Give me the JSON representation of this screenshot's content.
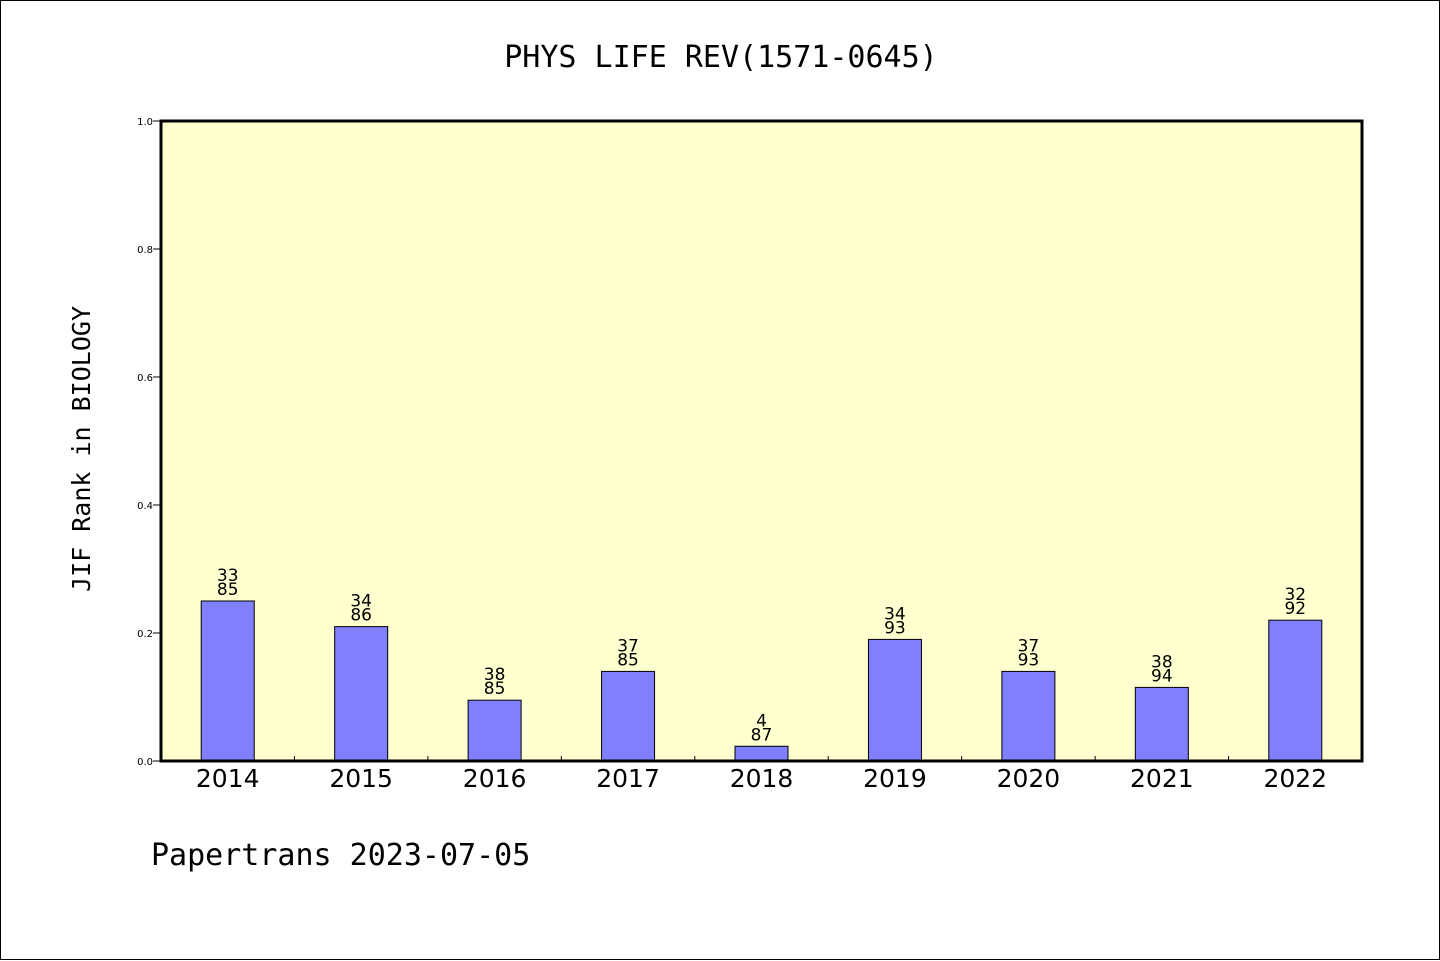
{
  "footer": {
    "text": "Papertrans 2023-07-05"
  },
  "colors": {
    "plot_background": "#ffffd0",
    "bar_fill": "#8080ff",
    "bar_stroke": "#000000"
  },
  "chart_data": {
    "type": "bar",
    "title": "PHYS LIFE REV(1571-0645)",
    "xlabel": "",
    "ylabel": "JIF Rank in BIOLOGY",
    "ylim": [
      0,
      1
    ],
    "yticks": [
      "0.0",
      "0.2",
      "0.4",
      "0.6",
      "0.8",
      "1.0"
    ],
    "grid": false,
    "categories": [
      "2014",
      "2015",
      "2016",
      "2017",
      "2018",
      "2019",
      "2020",
      "2021",
      "2022"
    ],
    "values": [
      0.25,
      0.21,
      0.095,
      0.14,
      0.023,
      0.19,
      0.14,
      0.115,
      0.22
    ],
    "ranks": [
      "33",
      "34",
      "38",
      "37",
      "4",
      "34",
      "37",
      "38",
      "32"
    ],
    "totals": [
      "85",
      "86",
      "85",
      "85",
      "87",
      "93",
      "93",
      "94",
      "92"
    ]
  }
}
